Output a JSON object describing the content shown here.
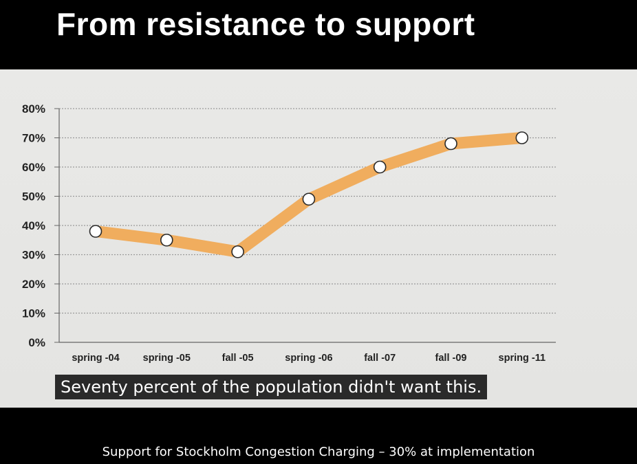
{
  "slide_title": "From resistance to support",
  "caption": "Seventy percent of the population didn't want this.",
  "footer": "Support for Stockholm Congestion Charging – 30% at implementation",
  "colors": {
    "line": "#f0ad5e",
    "marker_fill": "#ffffff",
    "marker_stroke": "#2a2a2a",
    "grid": "#9a9a9a",
    "background": "#e7e7e5"
  },
  "chart_data": {
    "type": "line",
    "categories": [
      "spring -04",
      "spring -05",
      "fall -05",
      "spring -06",
      "fall -07",
      "fall -09",
      "spring -11"
    ],
    "values": [
      38,
      35,
      31,
      49,
      60,
      68,
      70
    ],
    "ylim": [
      0,
      80
    ],
    "yticks": [
      "0%",
      "10%",
      "20%",
      "30%",
      "40%",
      "50%",
      "60%",
      "70%",
      "80%"
    ],
    "grid": true,
    "legend": "none"
  }
}
